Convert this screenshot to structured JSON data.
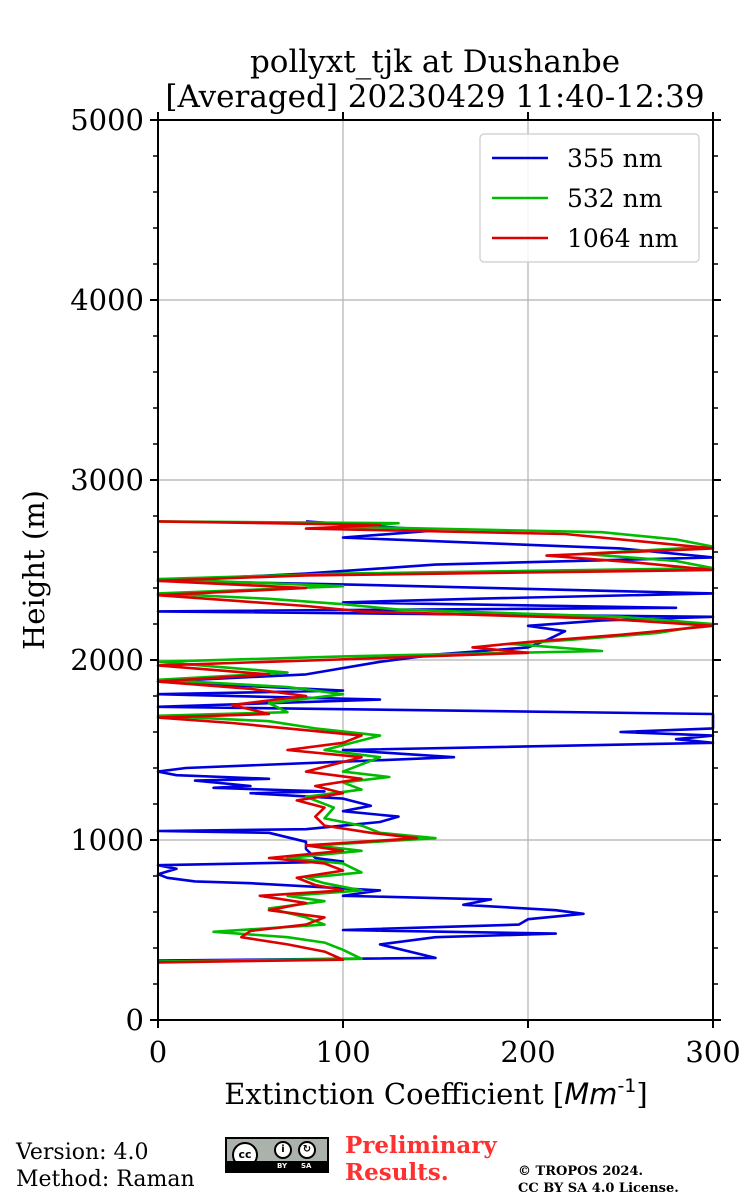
{
  "chart_data": {
    "type": "line",
    "title": "pollyxt_tjk at Dushanbe",
    "subtitle": "[Averaged] 20230429 11:40-12:39",
    "xlabel": "Extinction Coefficient [",
    "xlabel_unit": "Mm",
    "xlabel_exp": "-1",
    "xlabel_end": "]",
    "ylabel": "Height (m)",
    "xlim": [
      0,
      300
    ],
    "ylim": [
      0,
      5000
    ],
    "xticks": [
      0,
      100,
      200,
      300
    ],
    "yticks": [
      0,
      1000,
      2000,
      3000,
      4000,
      5000
    ],
    "grid": true,
    "legend_position": "top-right",
    "series": [
      {
        "name": "355 nm",
        "color": "#0000dd",
        "points": [
          [
            0,
            330
          ],
          [
            150,
            345
          ],
          [
            120,
            420
          ],
          [
            150,
            460
          ],
          [
            215,
            480
          ],
          [
            100,
            500
          ],
          [
            195,
            530
          ],
          [
            200,
            560
          ],
          [
            230,
            590
          ],
          [
            215,
            610
          ],
          [
            165,
            640
          ],
          [
            180,
            670
          ],
          [
            100,
            690
          ],
          [
            120,
            720
          ],
          [
            50,
            760
          ],
          [
            20,
            770
          ],
          [
            5,
            790
          ],
          [
            0,
            810
          ],
          [
            10,
            840
          ],
          [
            0,
            860
          ],
          [
            100,
            880
          ],
          [
            85,
            900
          ],
          [
            80,
            950
          ],
          [
            80,
            990
          ],
          [
            60,
            1040
          ],
          [
            0,
            1050
          ],
          [
            80,
            1060
          ],
          [
            100,
            1080
          ],
          [
            120,
            1100
          ],
          [
            130,
            1130
          ],
          [
            100,
            1160
          ],
          [
            115,
            1190
          ],
          [
            100,
            1230
          ],
          [
            50,
            1260
          ],
          [
            90,
            1270
          ],
          [
            30,
            1290
          ],
          [
            50,
            1300
          ],
          [
            20,
            1330
          ],
          [
            60,
            1340
          ],
          [
            10,
            1360
          ],
          [
            0,
            1380
          ],
          [
            15,
            1400
          ],
          [
            160,
            1460
          ],
          [
            100,
            1500
          ],
          [
            300,
            1540
          ],
          [
            280,
            1560
          ],
          [
            300,
            1580
          ],
          [
            250,
            1600
          ],
          [
            300,
            1620
          ],
          [
            300,
            1700
          ],
          [
            0,
            1740
          ],
          [
            120,
            1780
          ],
          [
            0,
            1810
          ],
          [
            100,
            1830
          ],
          [
            0,
            1880
          ],
          [
            80,
            1920
          ],
          [
            120,
            1990
          ],
          [
            150,
            2030
          ],
          [
            200,
            2070
          ],
          [
            210,
            2110
          ],
          [
            220,
            2160
          ],
          [
            200,
            2190
          ],
          [
            240,
            2220
          ],
          [
            300,
            2240
          ],
          [
            0,
            2270
          ],
          [
            280,
            2290
          ],
          [
            100,
            2320
          ],
          [
            170,
            2340
          ],
          [
            300,
            2370
          ],
          [
            100,
            2420
          ],
          [
            0,
            2440
          ],
          [
            80,
            2480
          ],
          [
            150,
            2530
          ],
          [
            300,
            2570
          ],
          [
            250,
            2620
          ],
          [
            100,
            2680
          ],
          [
            150,
            2720
          ],
          [
            80,
            2770
          ]
        ]
      },
      {
        "name": "532 nm",
        "color": "#00bb00",
        "points": [
          [
            0,
            325
          ],
          [
            110,
            340
          ],
          [
            100,
            390
          ],
          [
            90,
            430
          ],
          [
            70,
            460
          ],
          [
            30,
            490
          ],
          [
            90,
            530
          ],
          [
            80,
            570
          ],
          [
            60,
            620
          ],
          [
            90,
            660
          ],
          [
            70,
            690
          ],
          [
            110,
            720
          ],
          [
            90,
            760
          ],
          [
            80,
            790
          ],
          [
            110,
            820
          ],
          [
            100,
            870
          ],
          [
            70,
            900
          ],
          [
            110,
            940
          ],
          [
            85,
            970
          ],
          [
            150,
            1010
          ],
          [
            120,
            1040
          ],
          [
            110,
            1080
          ],
          [
            90,
            1120
          ],
          [
            95,
            1180
          ],
          [
            80,
            1240
          ],
          [
            110,
            1280
          ],
          [
            100,
            1320
          ],
          [
            125,
            1350
          ],
          [
            100,
            1380
          ],
          [
            110,
            1420
          ],
          [
            120,
            1460
          ],
          [
            90,
            1500
          ],
          [
            105,
            1540
          ],
          [
            120,
            1580
          ],
          [
            85,
            1620
          ],
          [
            60,
            1660
          ],
          [
            0,
            1690
          ],
          [
            70,
            1710
          ],
          [
            60,
            1760
          ],
          [
            100,
            1810
          ],
          [
            70,
            1850
          ],
          [
            0,
            1890
          ],
          [
            70,
            1930
          ],
          [
            0,
            1990
          ],
          [
            100,
            2020
          ],
          [
            240,
            2050
          ],
          [
            190,
            2090
          ],
          [
            220,
            2110
          ],
          [
            270,
            2150
          ],
          [
            300,
            2200
          ],
          [
            250,
            2240
          ],
          [
            130,
            2280
          ],
          [
            100,
            2310
          ],
          [
            60,
            2340
          ],
          [
            0,
            2370
          ],
          [
            100,
            2410
          ],
          [
            0,
            2450
          ],
          [
            100,
            2480
          ],
          [
            300,
            2510
          ],
          [
            280,
            2550
          ],
          [
            230,
            2590
          ],
          [
            300,
            2630
          ],
          [
            280,
            2670
          ],
          [
            240,
            2710
          ],
          [
            100,
            2740
          ],
          [
            130,
            2760
          ],
          [
            0,
            2770
          ]
        ]
      },
      {
        "name": "1064 nm",
        "color": "#dd0000",
        "points": [
          [
            0,
            320
          ],
          [
            100,
            335
          ],
          [
            90,
            380
          ],
          [
            70,
            420
          ],
          [
            45,
            460
          ],
          [
            50,
            495
          ],
          [
            80,
            530
          ],
          [
            90,
            570
          ],
          [
            60,
            610
          ],
          [
            80,
            650
          ],
          [
            55,
            690
          ],
          [
            100,
            720
          ],
          [
            85,
            750
          ],
          [
            75,
            790
          ],
          [
            100,
            830
          ],
          [
            90,
            870
          ],
          [
            60,
            900
          ],
          [
            100,
            940
          ],
          [
            80,
            970
          ],
          [
            140,
            1010
          ],
          [
            115,
            1040
          ],
          [
            90,
            1080
          ],
          [
            85,
            1130
          ],
          [
            90,
            1180
          ],
          [
            75,
            1220
          ],
          [
            100,
            1260
          ],
          [
            85,
            1300
          ],
          [
            110,
            1340
          ],
          [
            80,
            1380
          ],
          [
            95,
            1420
          ],
          [
            110,
            1460
          ],
          [
            70,
            1500
          ],
          [
            100,
            1540
          ],
          [
            110,
            1580
          ],
          [
            70,
            1620
          ],
          [
            40,
            1650
          ],
          [
            0,
            1680
          ],
          [
            60,
            1700
          ],
          [
            40,
            1750
          ],
          [
            80,
            1800
          ],
          [
            50,
            1840
          ],
          [
            0,
            1880
          ],
          [
            60,
            1920
          ],
          [
            0,
            1970
          ],
          [
            90,
            2000
          ],
          [
            200,
            2040
          ],
          [
            170,
            2070
          ],
          [
            200,
            2100
          ],
          [
            250,
            2140
          ],
          [
            300,
            2190
          ],
          [
            240,
            2230
          ],
          [
            110,
            2270
          ],
          [
            80,
            2300
          ],
          [
            40,
            2330
          ],
          [
            0,
            2360
          ],
          [
            80,
            2400
          ],
          [
            0,
            2440
          ],
          [
            80,
            2470
          ],
          [
            300,
            2500
          ],
          [
            260,
            2540
          ],
          [
            210,
            2580
          ],
          [
            300,
            2620
          ],
          [
            260,
            2660
          ],
          [
            220,
            2700
          ],
          [
            80,
            2730
          ],
          [
            120,
            2750
          ],
          [
            0,
            2770
          ]
        ]
      }
    ]
  },
  "footer": {
    "version": "Version: 4.0",
    "method": "Method: Raman",
    "preliminary_line1": "Preliminary",
    "preliminary_line2": "Results.",
    "copyright_line1": "© TROPOS 2024.",
    "copyright_line2": "CC BY SA 4.0 License.",
    "cc_labels": [
      "cc",
      "BY",
      "SA"
    ]
  }
}
